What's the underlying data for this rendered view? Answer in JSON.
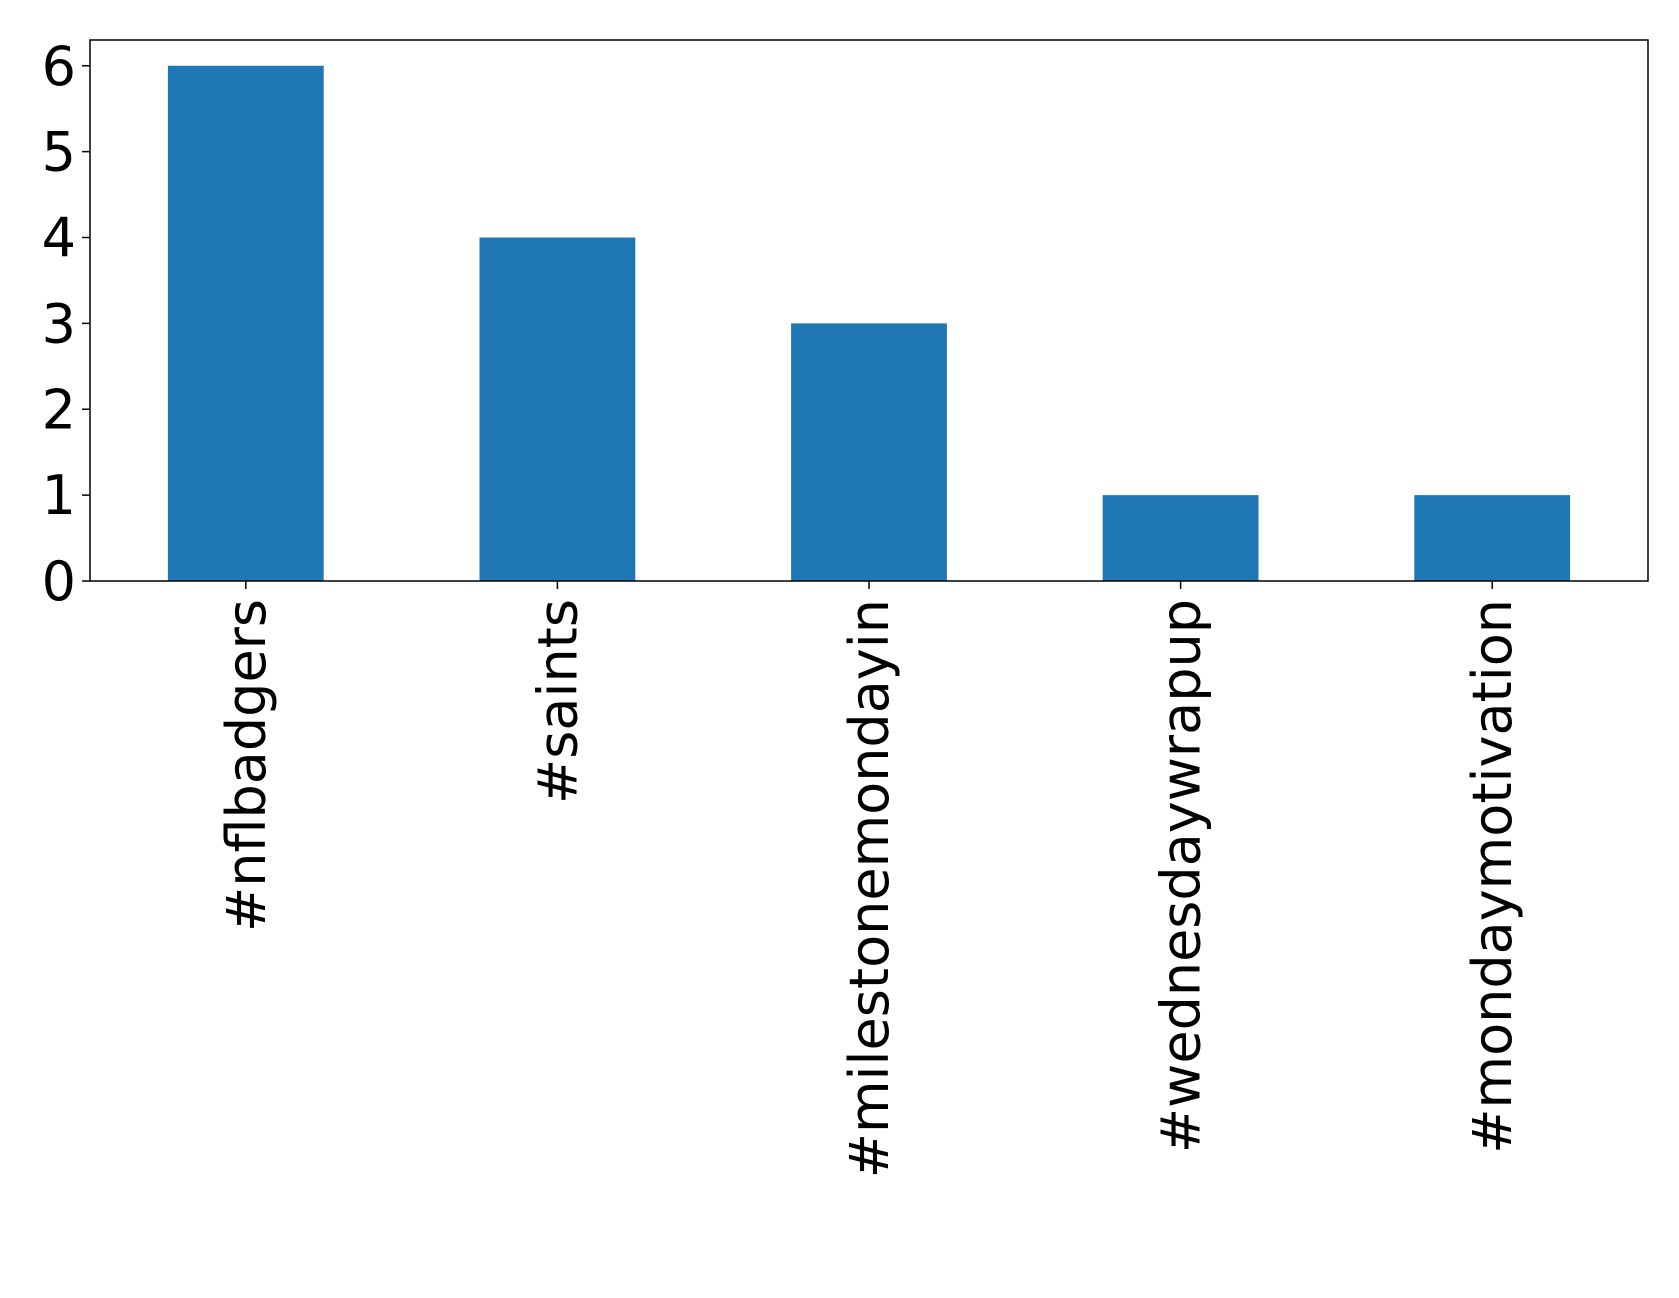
{
  "chart_data": {
    "type": "bar",
    "categories": [
      "#nflbadgers",
      "#saints",
      "#milestonemondayin",
      "#wednesdaywrapup",
      "#mondaymotivation"
    ],
    "values": [
      6,
      4,
      3,
      1,
      1
    ],
    "color": "#1f77b4",
    "ylim": [
      0,
      6.3
    ],
    "yticks": [
      0,
      1,
      2,
      3,
      4,
      5,
      6
    ],
    "grid": false
  }
}
